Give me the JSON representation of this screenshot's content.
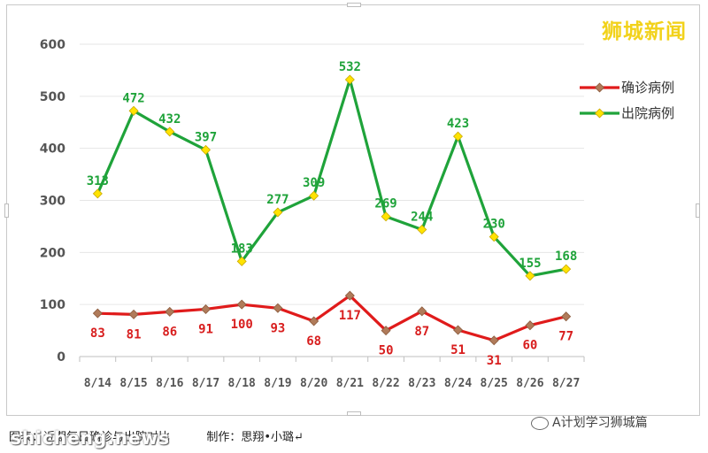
{
  "watermark_top": "狮城新闻",
  "caption": "图表：近期每日确诊与出院对比          制作：思翔•小璐↵",
  "wechat_account": "A计划学习狮城篇",
  "site_mark": "shicheng.news",
  "chart_data": {
    "type": "line",
    "title": "",
    "xlabel": "",
    "ylabel": "",
    "categories": [
      "8/14",
      "8/15",
      "8/16",
      "8/17",
      "8/18",
      "8/19",
      "8/20",
      "8/21",
      "8/22",
      "8/23",
      "8/24",
      "8/25",
      "8/26",
      "8/27"
    ],
    "ylim": [
      0,
      600
    ],
    "yticks": [
      0,
      100,
      200,
      300,
      400,
      500,
      600
    ],
    "grid": true,
    "legend_position": "right",
    "series": [
      {
        "name": "确诊病例",
        "color": "#e01b1b",
        "marker_color": "#b07b5a",
        "label_color": "#d81e1e",
        "values": [
          83,
          81,
          86,
          91,
          100,
          93,
          68,
          117,
          50,
          87,
          51,
          31,
          60,
          77
        ]
      },
      {
        "name": "出院病例",
        "color": "#1fa33a",
        "marker_color": "#ffe300",
        "label_color": "#1fa33a",
        "values": [
          313,
          472,
          432,
          397,
          183,
          277,
          309,
          532,
          269,
          244,
          423,
          230,
          155,
          168
        ]
      }
    ]
  }
}
